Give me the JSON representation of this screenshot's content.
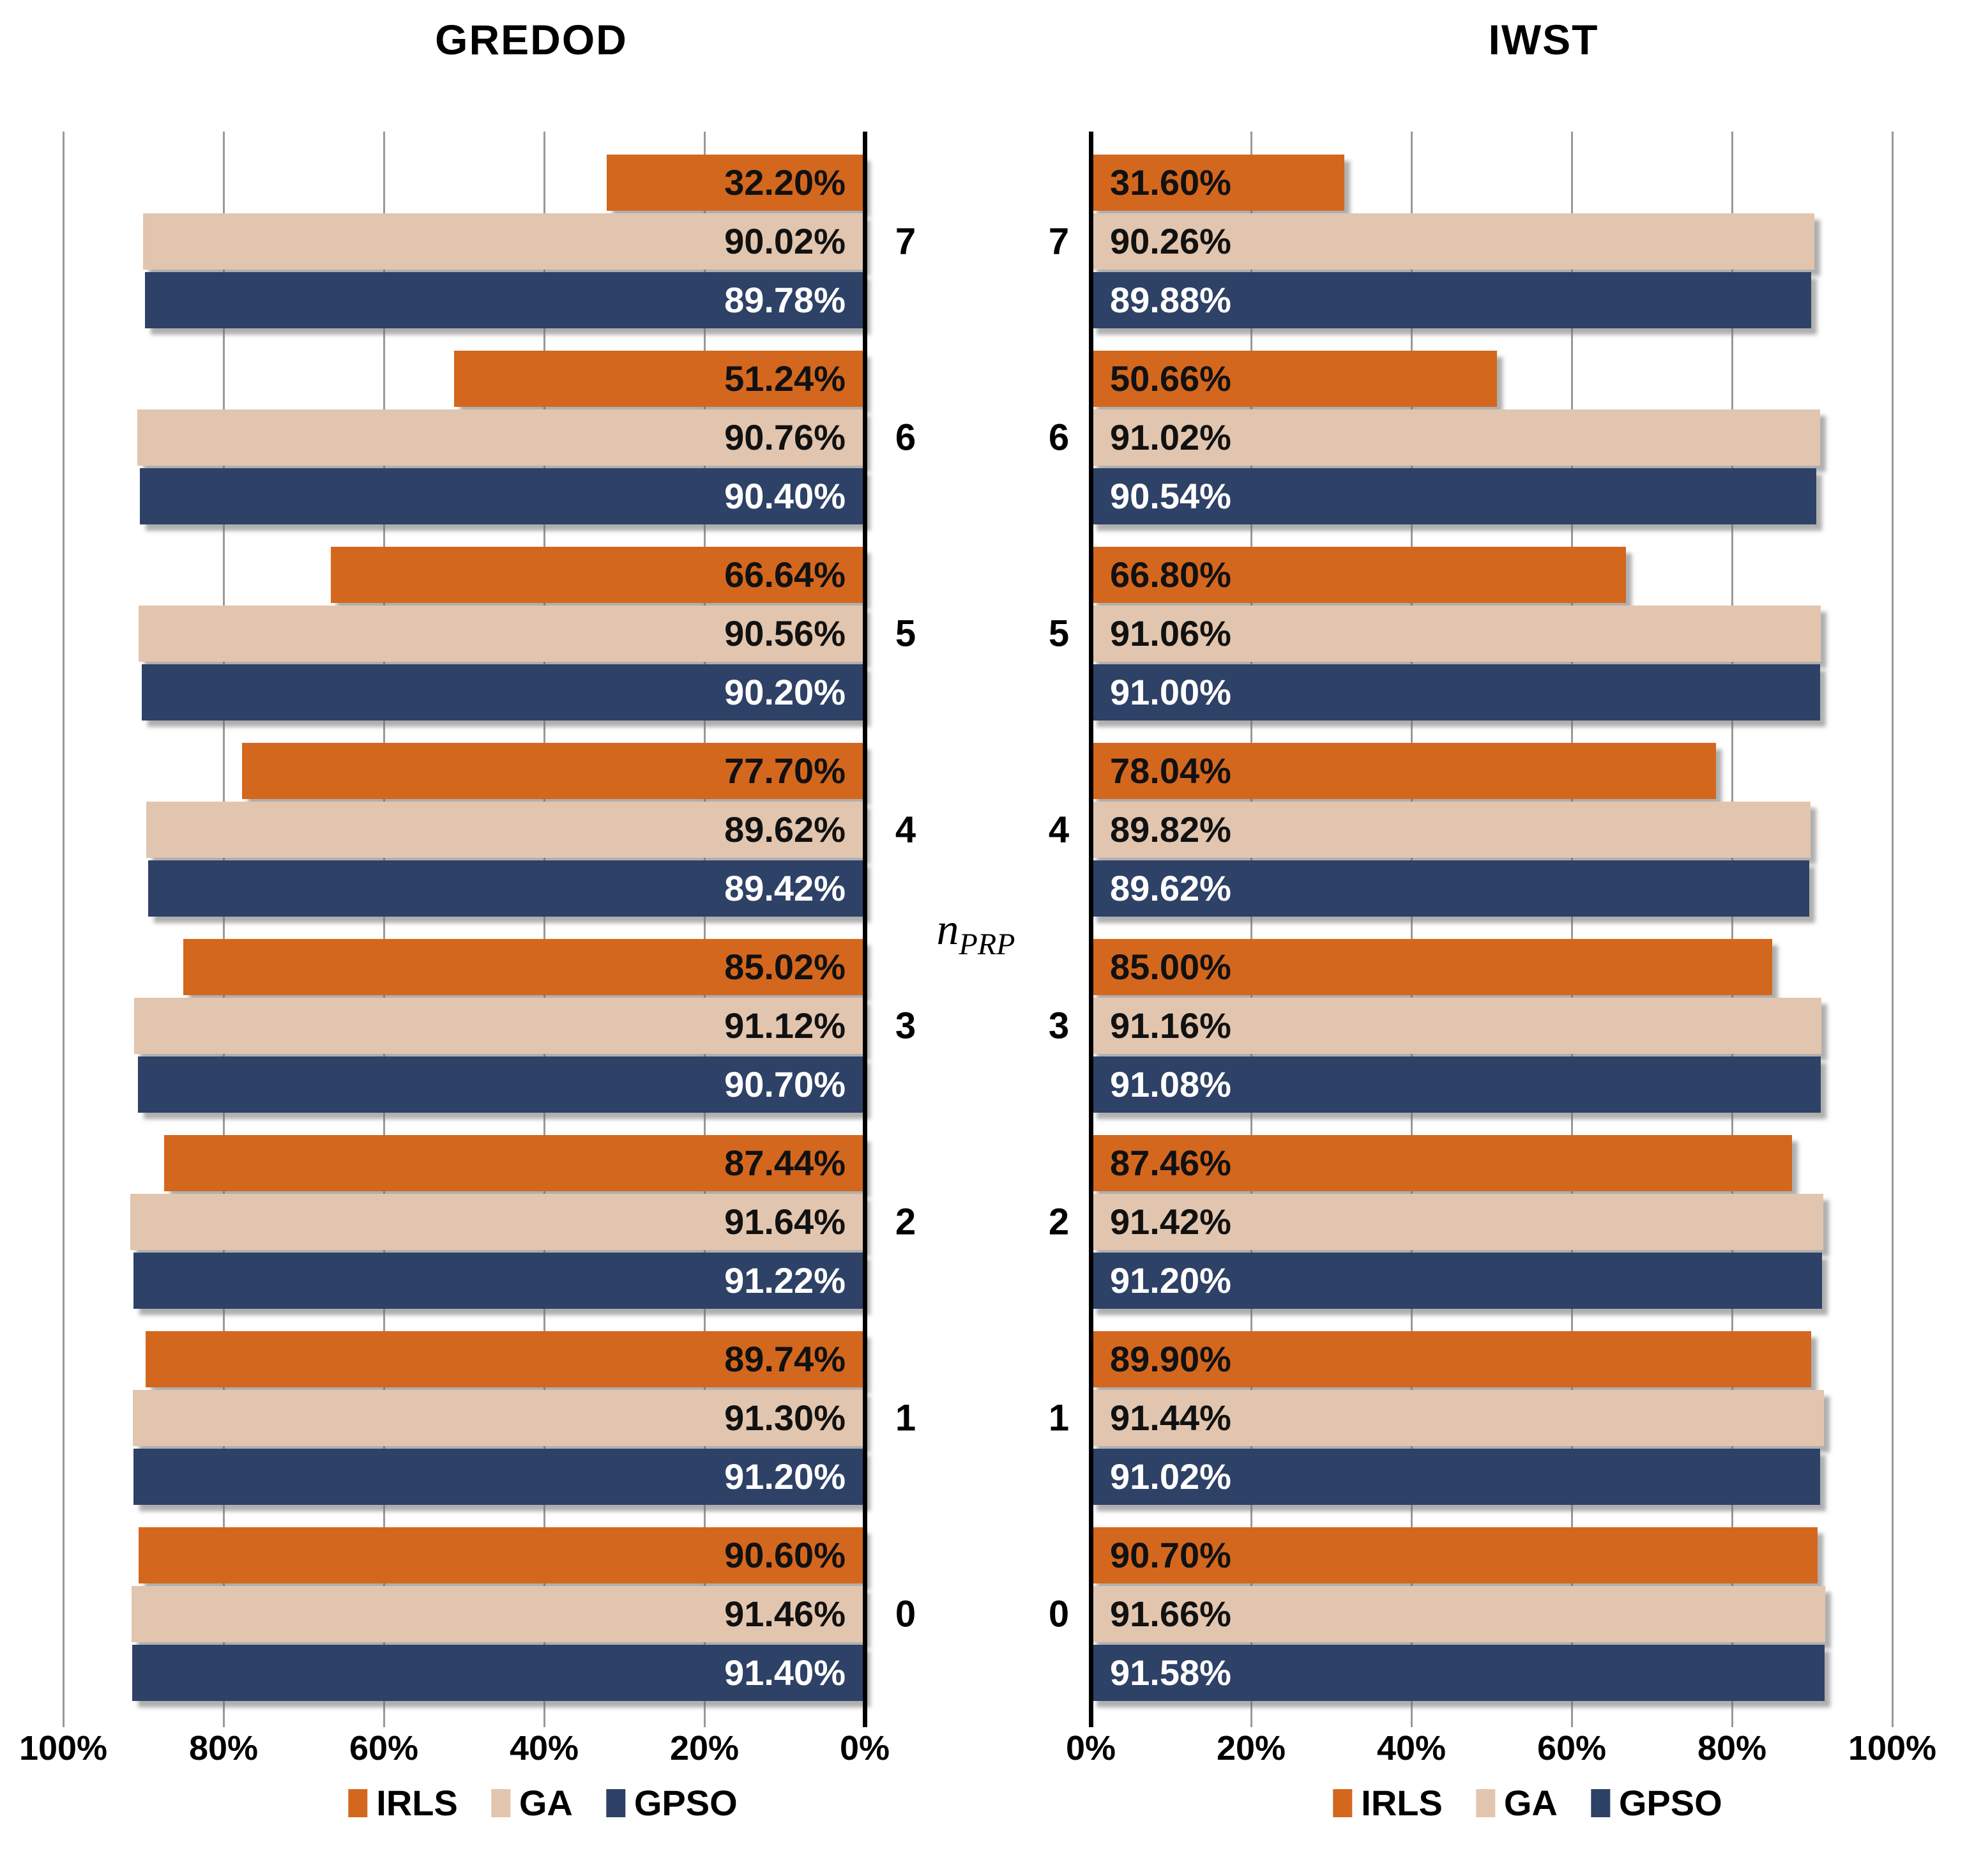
{
  "figure": {
    "center_axis_label": {
      "base": "n",
      "subscript": "PRP"
    }
  },
  "chart_data": [
    {
      "type": "bar",
      "title": "GREDOD",
      "orientation": "horizontal",
      "direction": "right-to-left",
      "value_unit": "%",
      "axis_range": [
        0,
        100
      ],
      "grid": true,
      "legend_position": "bottom",
      "x_tick_labels": [
        "100%",
        "80%",
        "60%",
        "40%",
        "20%",
        "0%"
      ],
      "categories": [
        "7",
        "6",
        "5",
        "4",
        "3",
        "2",
        "1",
        "0"
      ],
      "series": [
        {
          "name": "IRLS",
          "color": "#D4671E",
          "label_color": "#111111",
          "values": [
            32.2,
            51.24,
            66.64,
            77.7,
            85.02,
            87.44,
            89.74,
            90.6
          ]
        },
        {
          "name": "GA",
          "color": "#E2C5AE",
          "label_color": "#111111",
          "values": [
            90.02,
            90.76,
            90.56,
            89.62,
            91.12,
            91.64,
            91.3,
            91.46
          ]
        },
        {
          "name": "GPSO",
          "color": "#2E4166",
          "label_color": "#FFFFFF",
          "values": [
            89.78,
            90.4,
            90.2,
            89.42,
            90.7,
            91.22,
            91.2,
            91.4
          ]
        }
      ]
    },
    {
      "type": "bar",
      "title": "IWST",
      "orientation": "horizontal",
      "direction": "left-to-right",
      "value_unit": "%",
      "axis_range": [
        0,
        100
      ],
      "grid": true,
      "legend_position": "bottom",
      "x_tick_labels": [
        "0%",
        "20%",
        "40%",
        "60%",
        "80%",
        "100%"
      ],
      "categories": [
        "7",
        "6",
        "5",
        "4",
        "3",
        "2",
        "1",
        "0"
      ],
      "series": [
        {
          "name": "IRLS",
          "color": "#D4671E",
          "label_color": "#111111",
          "values": [
            31.6,
            50.66,
            66.8,
            78.04,
            85.0,
            87.46,
            89.9,
            90.7
          ]
        },
        {
          "name": "GA",
          "color": "#E2C5AE",
          "label_color": "#111111",
          "values": [
            90.26,
            91.02,
            91.06,
            89.82,
            91.16,
            91.42,
            91.44,
            91.66
          ]
        },
        {
          "name": "GPSO",
          "color": "#2E4166",
          "label_color": "#FFFFFF",
          "values": [
            89.88,
            90.54,
            91.0,
            89.62,
            91.08,
            91.2,
            91.02,
            91.58
          ]
        }
      ]
    }
  ]
}
